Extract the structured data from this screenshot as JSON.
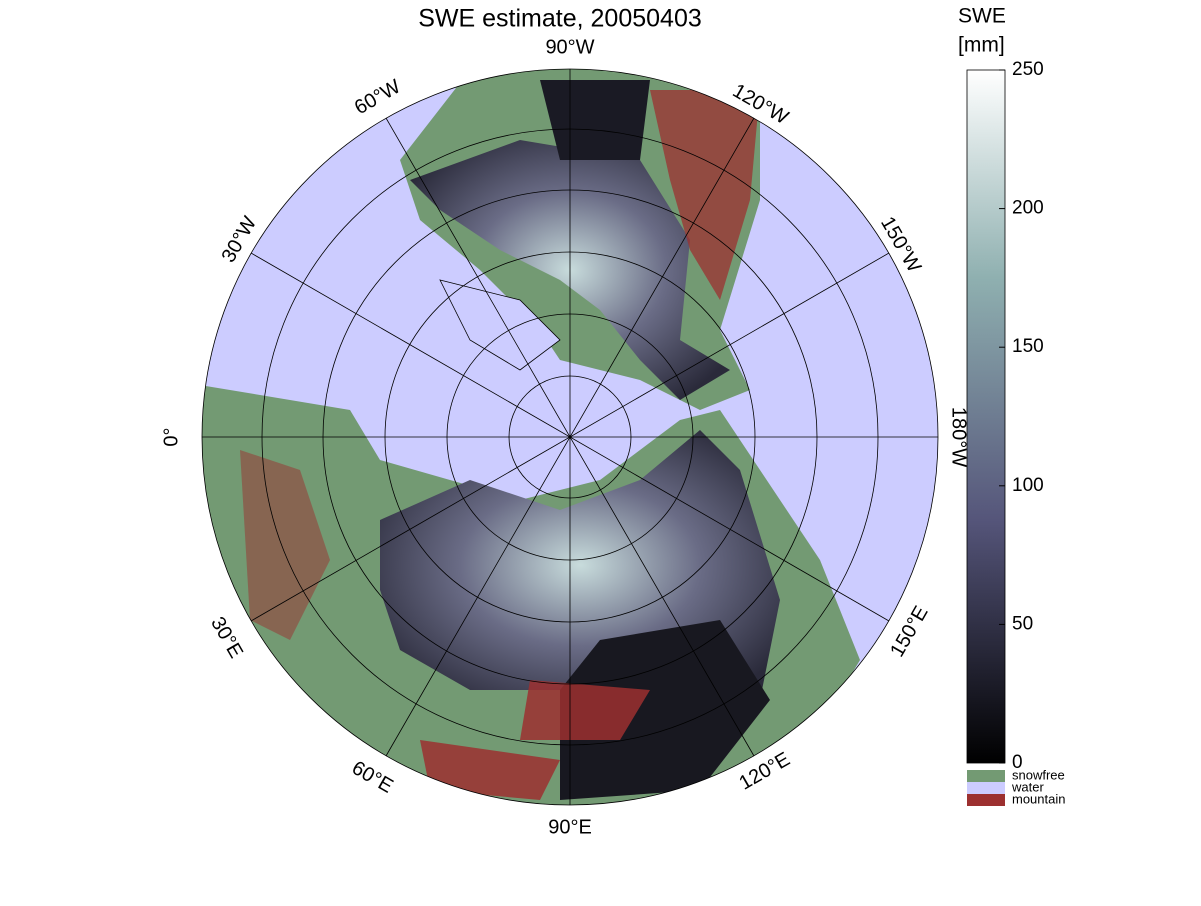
{
  "title": "SWE estimate, 20050403",
  "map": {
    "longitude_labels": [
      "90°W",
      "120°W",
      "150°W",
      "180°W",
      "150°E",
      "120°E",
      "90°E",
      "60°E",
      "30°E",
      "0°",
      "30°W",
      "60°W"
    ]
  },
  "colorbar": {
    "title": [
      "SWE",
      "[mm]"
    ],
    "ylim": [
      0,
      250
    ],
    "yticks": [
      0,
      50,
      100,
      150,
      200,
      250
    ],
    "categories": [
      {
        "name": "snowfree",
        "color": "#739a73"
      },
      {
        "name": "water",
        "color": "#ccccff"
      },
      {
        "name": "mountain",
        "color": "#9c3030"
      }
    ]
  }
}
